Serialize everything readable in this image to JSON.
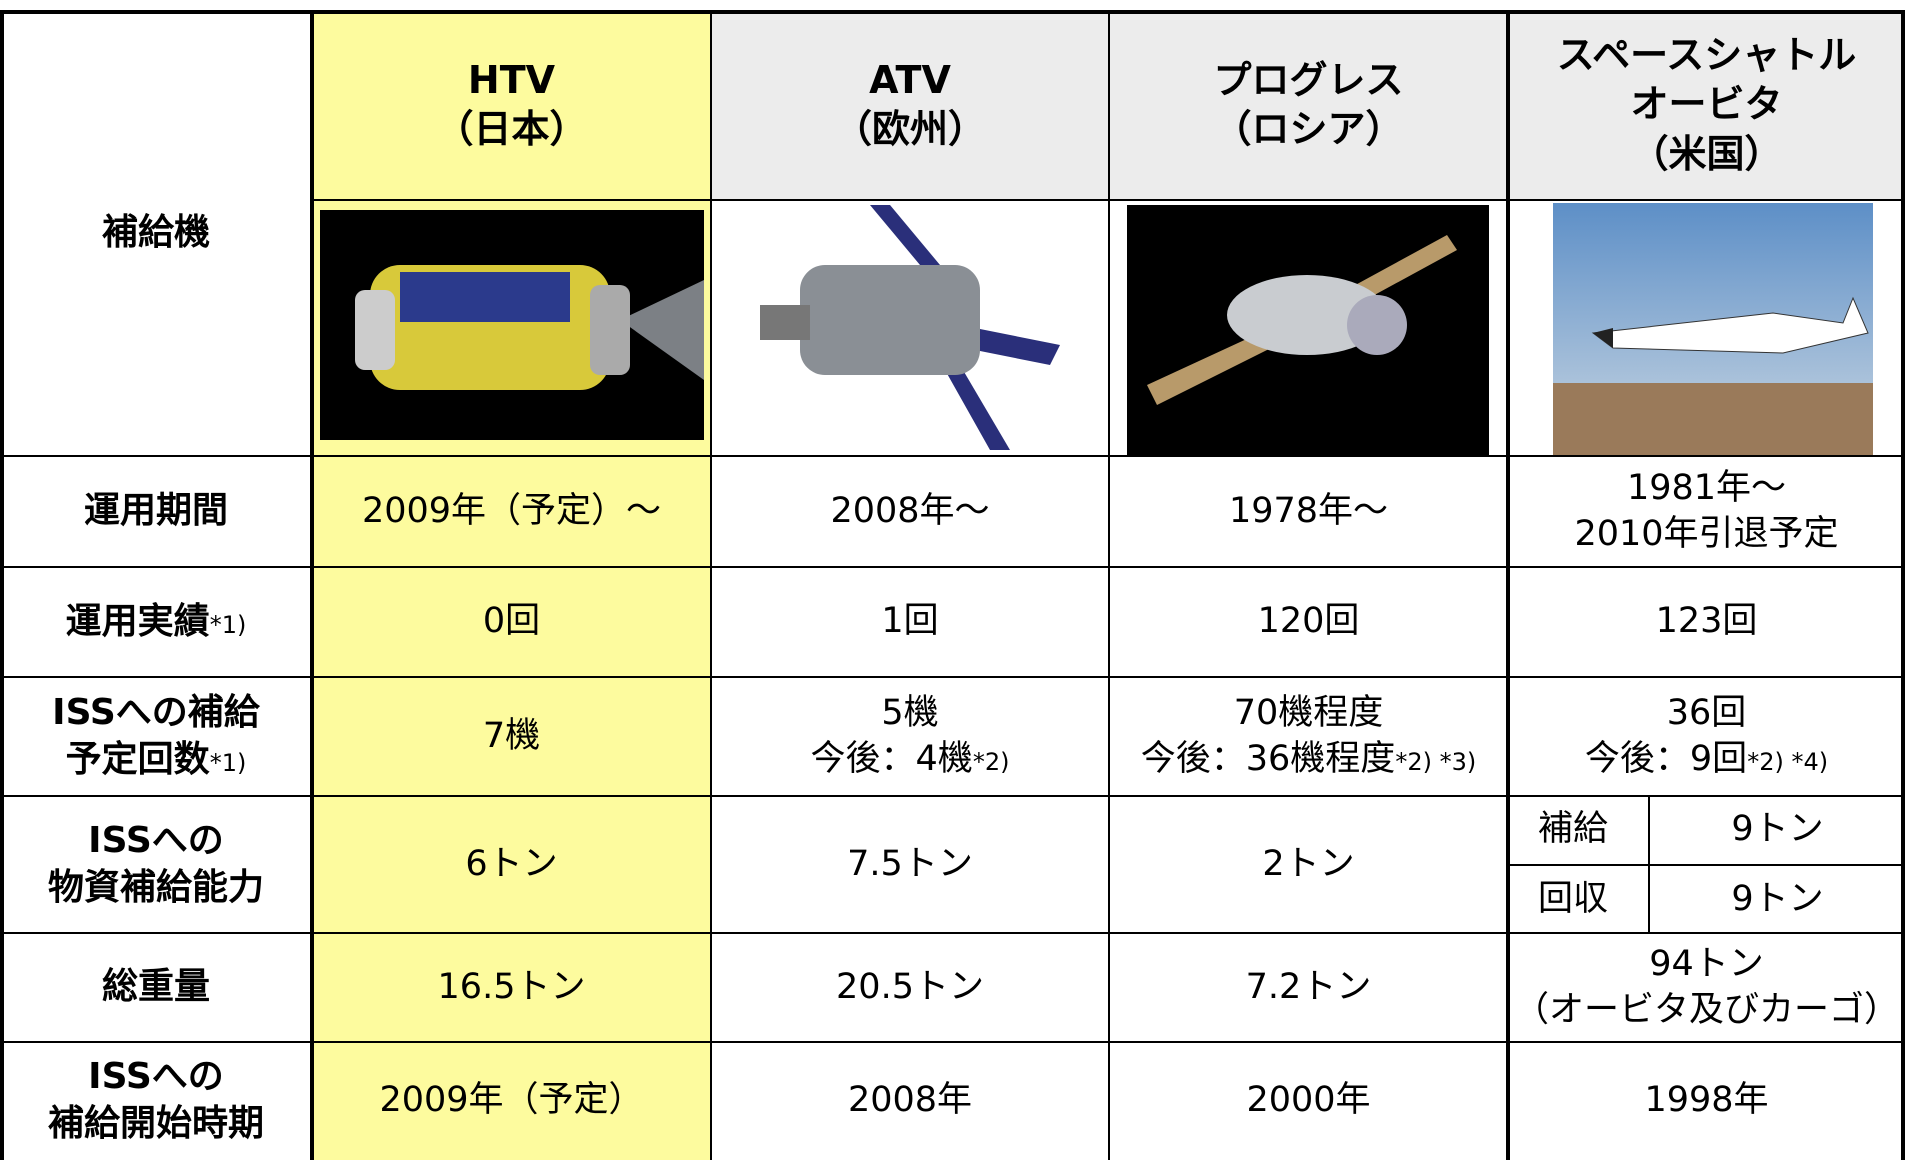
{
  "table": {
    "corner": "補給機",
    "vehicles": [
      {
        "lines": [
          "HTV",
          "（日本）"
        ]
      },
      {
        "lines": [
          "ATV",
          "（欧州）"
        ]
      },
      {
        "lines": [
          "プログレス",
          "（ロシア）"
        ]
      },
      {
        "lines": [
          "スペースシャトル",
          "オービタ",
          "（米国）"
        ]
      }
    ],
    "rows": [
      {
        "label": [
          "運用期間"
        ],
        "cells": [
          {
            "lines": [
              "2009年（予定）～"
            ]
          },
          {
            "lines": [
              "2008年～"
            ]
          },
          {
            "lines": [
              "1978年～"
            ]
          },
          {
            "lines": [
              "1981年～",
              "2010年引退予定"
            ]
          }
        ]
      },
      {
        "label": [
          "運用実績"
        ],
        "label_note": "*1)",
        "cells": [
          {
            "lines": [
              "0回"
            ]
          },
          {
            "lines": [
              "1回"
            ]
          },
          {
            "lines": [
              "120回"
            ]
          },
          {
            "lines": [
              "123回"
            ]
          }
        ]
      },
      {
        "label": [
          "ISSへの補給",
          "予定回数"
        ],
        "label_note": "*1)",
        "cells": [
          {
            "lines": [
              "7機"
            ]
          },
          {
            "lines": [
              "5機",
              "今後：4機"
            ],
            "note": "*2)"
          },
          {
            "lines": [
              "70機程度",
              "今後：36機程度"
            ],
            "note": "*2) *3)"
          },
          {
            "lines": [
              "36回",
              "今後：9回"
            ],
            "note": "*2) *4)"
          }
        ]
      },
      {
        "label": [
          "ISSへの",
          "物資補給能力"
        ],
        "cells": [
          {
            "lines": [
              "6トン"
            ]
          },
          {
            "lines": [
              "7.5トン"
            ]
          },
          {
            "lines": [
              "2トン"
            ]
          },
          {
            "sub": [
              [
                "補給",
                "9トン"
              ],
              [
                "回収",
                "9トン"
              ]
            ]
          }
        ]
      },
      {
        "label": [
          "総重量"
        ],
        "cells": [
          {
            "lines": [
              "16.5トン"
            ]
          },
          {
            "lines": [
              "20.5トン"
            ]
          },
          {
            "lines": [
              "7.2トン"
            ]
          },
          {
            "lines": [
              "94トン",
              "（オービタ及びカーゴ）"
            ]
          }
        ]
      },
      {
        "label": [
          "ISSへの",
          "補給開始時期"
        ],
        "cells": [
          {
            "lines": [
              "2009年（予定）"
            ]
          },
          {
            "lines": [
              "2008年"
            ]
          },
          {
            "lines": [
              "2000年"
            ]
          },
          {
            "lines": [
              "1998年"
            ]
          }
        ]
      }
    ]
  }
}
